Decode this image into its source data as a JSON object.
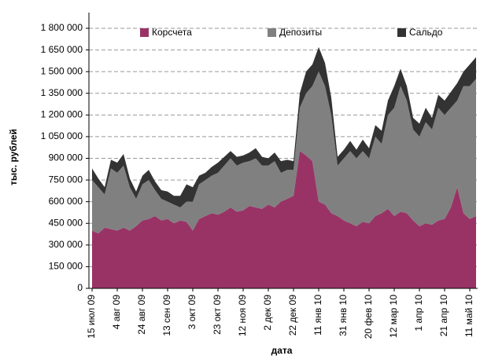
{
  "chart_data": {
    "type": "stacked_area",
    "x_label": "дата",
    "y_label": "тыс. рублей",
    "categories": [
      "15 июл 09",
      null,
      null,
      null,
      "4 авг 09",
      null,
      null,
      null,
      "24 авг 09",
      null,
      null,
      null,
      "13 сен 09",
      null,
      null,
      null,
      "3 окт 09",
      null,
      null,
      null,
      "23 окт 09",
      null,
      null,
      null,
      "12 ноя 09",
      null,
      null,
      null,
      "2 дек 09",
      null,
      null,
      null,
      "22 дек 09",
      null,
      null,
      null,
      "11 янв 10",
      null,
      null,
      null,
      "31 янв 10",
      null,
      null,
      null,
      "20 фев 10",
      null,
      null,
      null,
      "12 мар 10",
      null,
      null,
      null,
      "1 апр 10",
      null,
      null,
      null,
      "21 апр 10",
      null,
      null,
      null,
      "11 май 10",
      null
    ],
    "series": [
      {
        "name": "Корсчета",
        "color": "#993366",
        "values": [
          400000,
          380000,
          420000,
          410000,
          400000,
          420000,
          400000,
          430000,
          470000,
          480000,
          500000,
          470000,
          480000,
          450000,
          470000,
          460000,
          400000,
          480000,
          500000,
          520000,
          510000,
          530000,
          560000,
          530000,
          540000,
          570000,
          560000,
          550000,
          580000,
          560000,
          600000,
          620000,
          640000,
          950000,
          920000,
          880000,
          600000,
          580000,
          520000,
          500000,
          470000,
          450000,
          430000,
          460000,
          450000,
          500000,
          520000,
          550000,
          500000,
          530000,
          520000,
          470000,
          430000,
          450000,
          440000,
          470000,
          480000,
          560000,
          700000,
          520000,
          480000,
          500000
        ]
      },
      {
        "name": "Депозиты",
        "color": "#808080",
        "values": [
          350000,
          320000,
          230000,
          420000,
          400000,
          430000,
          300000,
          190000,
          250000,
          270000,
          180000,
          150000,
          120000,
          130000,
          90000,
          140000,
          200000,
          240000,
          250000,
          260000,
          290000,
          320000,
          340000,
          320000,
          330000,
          310000,
          340000,
          300000,
          270000,
          320000,
          200000,
          200000,
          180000,
          300000,
          430000,
          520000,
          900000,
          820000,
          680000,
          350000,
          430000,
          500000,
          470000,
          490000,
          450000,
          550000,
          480000,
          650000,
          750000,
          870000,
          780000,
          630000,
          620000,
          700000,
          660000,
          780000,
          720000,
          690000,
          600000,
          880000,
          920000,
          950000
        ]
      },
      {
        "name": "Сальдо",
        "color": "#333333",
        "values": [
          80000,
          60000,
          50000,
          60000,
          70000,
          80000,
          60000,
          50000,
          60000,
          70000,
          60000,
          60000,
          70000,
          60000,
          80000,
          120000,
          100000,
          60000,
          50000,
          60000,
          70000,
          60000,
          50000,
          60000,
          50000,
          60000,
          70000,
          60000,
          50000,
          60000,
          80000,
          70000,
          60000,
          100000,
          150000,
          150000,
          170000,
          160000,
          120000,
          60000,
          60000,
          70000,
          60000,
          80000,
          70000,
          80000,
          90000,
          100000,
          150000,
          120000,
          100000,
          80000,
          90000,
          100000,
          80000,
          90000,
          100000,
          110000,
          120000,
          100000,
          150000,
          150000
        ]
      }
    ],
    "ylim": [
      0,
      1800000
    ],
    "yticks": [
      0,
      {
        "value": 150000,
        "label": "150 000"
      },
      {
        "value": 300000,
        "label": "300 000"
      },
      {
        "value": 450000,
        "label": "450 000"
      },
      {
        "value": 600000,
        "label": "600 000"
      },
      {
        "value": 750000,
        "label": "750 000"
      },
      {
        "value": 900000,
        "label": "900 000"
      },
      {
        "value": 1050000,
        "label": "1 050 000"
      },
      {
        "value": 1200000,
        "label": "1 200 000"
      },
      {
        "value": 1350000,
        "label": "1 350 000"
      },
      {
        "value": 1500000,
        "label": "1 500 000"
      },
      {
        "value": 1650000,
        "label": "1 650 000"
      },
      {
        "value": 1800000,
        "label": "1 800 000"
      }
    ],
    "grid": true,
    "legend": "top"
  }
}
